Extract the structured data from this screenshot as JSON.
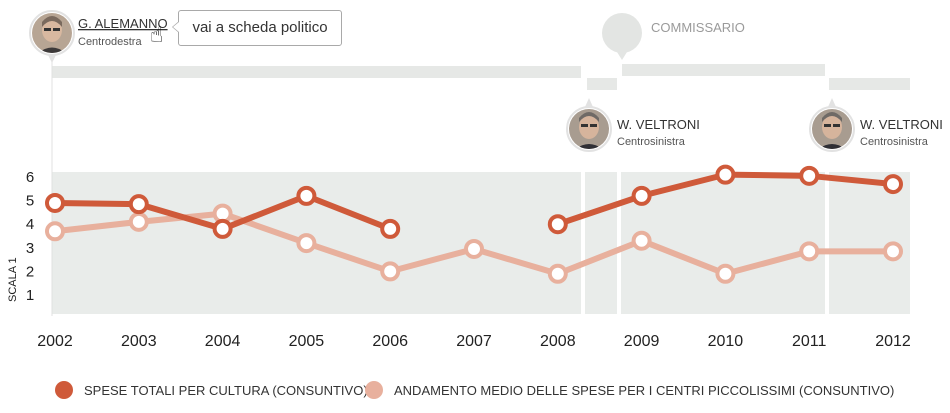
{
  "tooltip": {
    "label": "vai a scheda politico"
  },
  "icons": {
    "cursor": "pointer-hand-icon",
    "avatar": "politician-portrait-icon"
  },
  "colors": {
    "series_total": "#cf5a3a",
    "series_small": "#e8b09d",
    "band_bg": "#e9ecea",
    "mandate_bar": "#e6e8e6"
  },
  "mandates": [
    {
      "name": "G. ALEMANNO",
      "party": "Centrodestra",
      "start": 2002,
      "end": 2008.3
    },
    {
      "name": "",
      "party": "",
      "start": 2008.3,
      "end": 2008.7,
      "avatar": false
    },
    {
      "name": "COMMISSARIO",
      "party": "",
      "start": 2008.7,
      "end": 2011.2,
      "commissioner": true
    },
    {
      "name": "W. VELTRONI",
      "party": "Centrosinistra",
      "marker_year": 2008.35,
      "start": 2011.2,
      "end": 2012.3,
      "second_label_year": 2011.2
    }
  ],
  "labels": {
    "alemanno": {
      "name": "G. ALEMANNO",
      "party": "Centrodestra"
    },
    "commissario": "COMMISSARIO",
    "veltroni_1": {
      "name": "W. VELTRONI",
      "party": "Centrosinistra"
    },
    "veltroni_2": {
      "name": "W. VELTRONI",
      "party": "Centrosinistra"
    }
  },
  "chart_data": {
    "type": "line",
    "x": [
      2002,
      2003,
      2004,
      2005,
      2006,
      2007,
      2008,
      2009,
      2010,
      2011,
      2012
    ],
    "xticks": [
      "2002",
      "2003",
      "2004",
      "2005",
      "2006",
      "2007",
      "2008",
      "2009",
      "2010",
      "2011",
      "2012"
    ],
    "ylabel": "SCALA 1",
    "yticks": [
      "1",
      "2",
      "3",
      "4",
      "5",
      "6"
    ],
    "ylim": [
      0.2,
      6.2
    ],
    "series": [
      {
        "name": "SPESE TOTALI PER CULTURA (CONSUNTIVO)",
        "segments": [
          [
            [
              2002,
              4.9
            ],
            [
              2003,
              4.85
            ],
            [
              2004,
              3.8
            ],
            [
              2005,
              5.2
            ],
            [
              2006,
              3.8
            ]
          ],
          [
            [
              2008,
              4.0
            ],
            [
              2009,
              5.2
            ],
            [
              2010,
              6.1
            ],
            [
              2011,
              6.05
            ],
            [
              2012,
              5.7
            ]
          ]
        ]
      },
      {
        "name": "ANDAMENTO MEDIO DELLE SPESE PER I CENTRI PICCOLISSIMI (CONSUNTIVO)",
        "segments": [
          [
            [
              2002,
              3.7
            ],
            [
              2003,
              4.1
            ],
            [
              2004,
              4.45
            ],
            [
              2005,
              3.2
            ],
            [
              2006,
              2.0
            ],
            [
              2007,
              2.95
            ],
            [
              2008,
              1.9
            ],
            [
              2009,
              3.3
            ],
            [
              2010,
              1.9
            ],
            [
              2011,
              2.85
            ],
            [
              2012,
              2.85
            ]
          ]
        ]
      }
    ],
    "legend_position": "bottom"
  }
}
